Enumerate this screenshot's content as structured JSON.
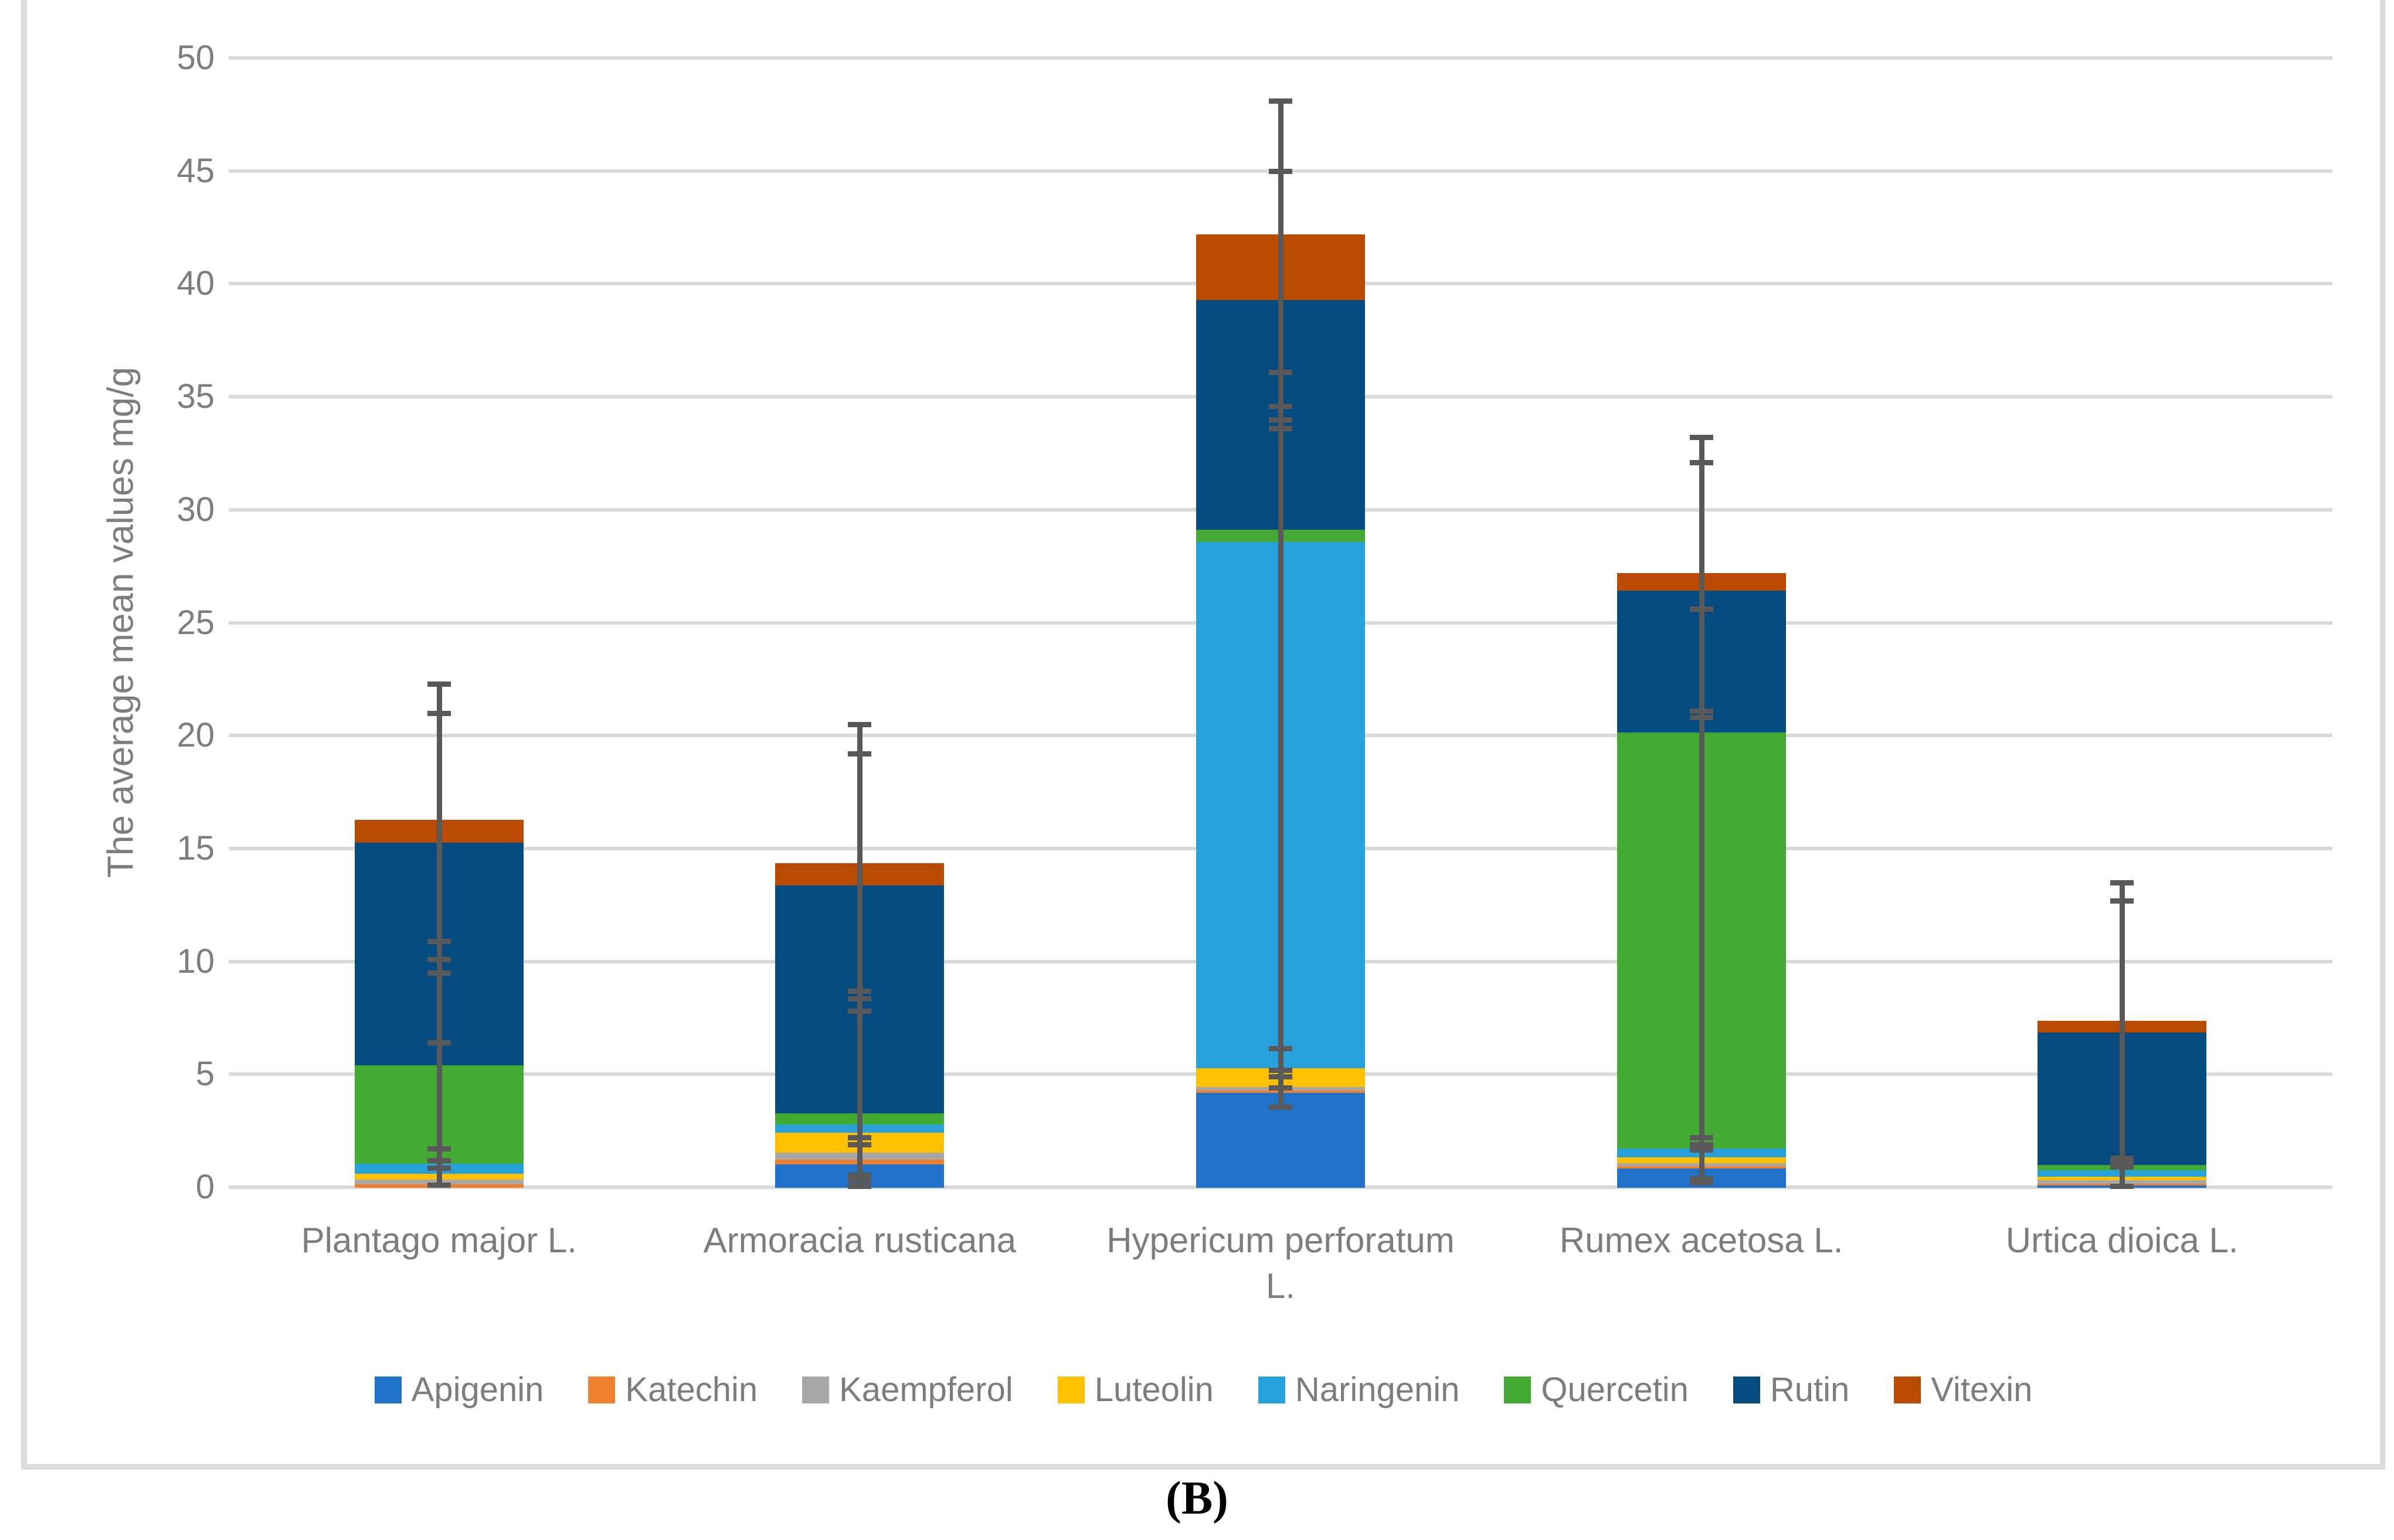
{
  "caption": {
    "text": "(B)"
  },
  "colors": {
    "gridline": "#d9d9d9",
    "error_bar": "#595959",
    "axis_text": "#7d7d7d",
    "frame_border": "#dcdcdc",
    "background": "#ffffff"
  },
  "chart_data": {
    "type": "bar",
    "stacked": true,
    "title": "",
    "xlabel": "",
    "ylabel": "The average mean values mg/g",
    "ylim": [
      0,
      50
    ],
    "yticks": [
      0,
      5,
      10,
      15,
      20,
      25,
      30,
      35,
      40,
      45,
      50
    ],
    "grid": true,
    "legend_position": "bottom",
    "categories": [
      "Plantago major L.",
      "Armoracia rusticana",
      "Hypericum perforatum L.",
      "Rumex acetosa L.",
      "Urtica dioica L."
    ],
    "series": [
      {
        "name": "Apigenin",
        "color": "#1f72c8",
        "values": [
          0,
          1.05,
          4.2,
          0.85,
          0.1
        ]
      },
      {
        "name": "Katechin",
        "color": "#f0812f",
        "values": [
          0.15,
          0.2,
          0.1,
          0.1,
          0.08
        ]
      },
      {
        "name": "Kaempferol",
        "color": "#a8a8a8",
        "values": [
          0.2,
          0.3,
          0.15,
          0.15,
          0.15
        ]
      },
      {
        "name": "Luteolin",
        "color": "#ffc000",
        "values": [
          0.27,
          0.9,
          0.85,
          0.25,
          0.17
        ]
      },
      {
        "name": "Naringenin",
        "color": "#27a1db",
        "values": [
          0.45,
          0.35,
          23.3,
          0.4,
          0.27
        ]
      },
      {
        "name": "Quercetin",
        "color": "#43ab34",
        "values": [
          4.35,
          0.5,
          0.55,
          18.4,
          0.25
        ]
      },
      {
        "name": "Rutin",
        "color": "#054b7f",
        "values": [
          9.85,
          10.1,
          10.15,
          6.3,
          5.85
        ]
      },
      {
        "name": "Vitexin",
        "color": "#b94a02",
        "values": [
          1.0,
          0.95,
          2.9,
          0.75,
          0.5
        ]
      }
    ],
    "bar_totals": [
      16.27,
      14.35,
      42.2,
      27.2,
      7.37
    ],
    "error_bars": [
      {
        "min": 0.05,
        "max": 22.3,
        "caps": [
          22.3,
          21.0,
          10.9,
          10.1,
          9.5,
          6.4,
          1.7,
          1.2,
          0.85,
          0.1
        ]
      },
      {
        "min": 0.05,
        "max": 20.5,
        "caps": [
          20.5,
          19.2,
          8.7,
          8.35,
          7.8,
          2.2,
          1.9,
          0.55,
          0.3,
          0.05
        ]
      },
      {
        "min": 3.55,
        "max": 48.1,
        "caps": [
          48.1,
          45.0,
          36.1,
          34.6,
          34.0,
          33.6,
          6.15,
          5.2,
          4.9,
          4.4,
          3.55
        ]
      },
      {
        "min": 0.1,
        "max": 33.2,
        "caps": [
          33.2,
          32.1,
          25.6,
          21.1,
          20.8,
          2.2,
          1.9,
          1.65,
          0.4,
          0.2
        ]
      },
      {
        "min": 0.05,
        "max": 13.5,
        "caps": [
          13.5,
          12.7,
          1.3,
          1.1,
          0.9,
          0.05
        ]
      }
    ]
  }
}
